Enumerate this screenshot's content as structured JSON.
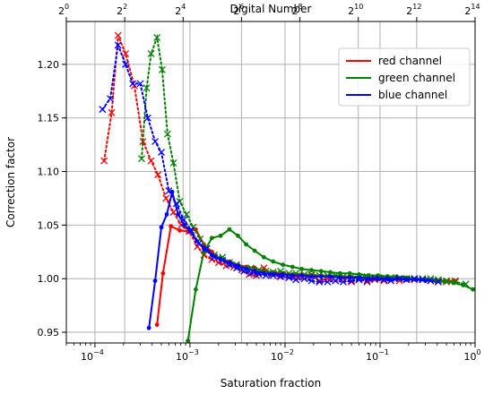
{
  "chart_data": {
    "type": "line",
    "xlabel": "Saturation fraction",
    "ylabel": "Correction factor",
    "top_xlabel": "Digital Number",
    "xscale": "log",
    "xlim": [
      5e-05,
      1.0
    ],
    "ylim": [
      0.94,
      1.24
    ],
    "grid": true,
    "legend_position": "top-right",
    "x_ticks": [
      {
        "value": 0.0001,
        "label": "10",
        "exp": "−4"
      },
      {
        "value": 0.001,
        "label": "10",
        "exp": "−3"
      },
      {
        "value": 0.01,
        "label": "10",
        "exp": "−2"
      },
      {
        "value": 0.1,
        "label": "10",
        "exp": "−1"
      },
      {
        "value": 1.0,
        "label": "10",
        "exp": "0"
      }
    ],
    "top_x_ticks": [
      {
        "value": 1,
        "label": "2",
        "exp": "0"
      },
      {
        "value": 4,
        "label": "2",
        "exp": "2"
      },
      {
        "value": 16,
        "label": "2",
        "exp": "4"
      },
      {
        "value": 64,
        "label": "2",
        "exp": "6"
      },
      {
        "value": 256,
        "label": "2",
        "exp": "8"
      },
      {
        "value": 1024,
        "label": "2",
        "exp": "10"
      },
      {
        "value": 4096,
        "label": "2",
        "exp": "12"
      },
      {
        "value": 16384,
        "label": "2",
        "exp": "14"
      }
    ],
    "top_xlim": [
      1,
      16384
    ],
    "y_ticks": [
      "0.95",
      "1.00",
      "1.05",
      "1.10",
      "1.15",
      "1.20"
    ],
    "series": [
      {
        "name": "red channel",
        "color": "#ff0000",
        "measured": {
          "x": [
            0.00045,
            0.00052,
            0.00063,
            0.00078,
            0.00095,
            0.00115,
            0.0014,
            0.0017,
            0.0021,
            0.0026,
            0.0032,
            0.0039,
            0.0048,
            0.006,
            0.0075,
            0.0095,
            0.012,
            0.015,
            0.019,
            0.024,
            0.03,
            0.038,
            0.048,
            0.06,
            0.075,
            0.095,
            0.12,
            0.15,
            0.19,
            0.24,
            0.3,
            0.38,
            0.48,
            0.6
          ],
          "y": [
            0.957,
            1.005,
            1.049,
            1.045,
            1.044,
            1.046,
            1.032,
            1.025,
            1.018,
            1.016,
            1.013,
            1.011,
            1.01,
            1.007,
            1.006,
            1.005,
            1.004,
            1.004,
            1.003,
            1.003,
            1.002,
            1.002,
            1.002,
            1.001,
            1.001,
            1.001,
            1.0,
            1.0,
            1.0,
            0.999,
            0.999,
            0.998,
            0.998,
            0.998
          ]
        },
        "model": {
          "x": [
            0.000125,
            0.00015,
            0.000175,
            0.00021,
            0.00026,
            0.00032,
            0.00039,
            0.00046,
            0.00056,
            0.00067,
            0.00081,
            0.00098,
            0.0012,
            0.0014,
            0.0017,
            0.002,
            0.0024,
            0.0029,
            0.0035,
            0.0042,
            0.005,
            0.006,
            0.0073,
            0.0088,
            0.011,
            0.013,
            0.016,
            0.019,
            0.023,
            0.028,
            0.034,
            0.041,
            0.05,
            0.06,
            0.073,
            0.088,
            0.11,
            0.13,
            0.16,
            0.19,
            0.23,
            0.28,
            0.34,
            0.41,
            0.5,
            0.62
          ],
          "y": [
            1.11,
            1.155,
            1.227,
            1.21,
            1.18,
            1.128,
            1.11,
            1.097,
            1.075,
            1.062,
            1.05,
            1.044,
            1.03,
            1.022,
            1.018,
            1.015,
            1.012,
            1.011,
            1.008,
            1.004,
            1.003,
            1.01,
            1.004,
            1.002,
            1.001,
            1.002,
            1.0,
            1.003,
            0.998,
            1.0,
            0.998,
            1.0,
            0.997,
            0.999,
            0.997,
            0.999,
            0.998,
            1.0,
            0.998,
            1.0,
            0.999,
            0.999,
            0.998,
            0.998,
            0.997,
            0.998
          ]
        }
      },
      {
        "name": "green channel",
        "color": "#008000",
        "measured": {
          "x": [
            0.00095,
            0.00115,
            0.0014,
            0.0017,
            0.0021,
            0.0026,
            0.0032,
            0.0039,
            0.0048,
            0.006,
            0.0075,
            0.0095,
            0.012,
            0.015,
            0.019,
            0.024,
            0.03,
            0.038,
            0.048,
            0.06,
            0.075,
            0.095,
            0.12,
            0.15,
            0.19,
            0.24,
            0.3,
            0.38,
            0.48,
            0.6,
            0.75,
            0.95
          ],
          "y": [
            0.942,
            0.99,
            1.025,
            1.038,
            1.04,
            1.046,
            1.04,
            1.032,
            1.026,
            1.02,
            1.016,
            1.013,
            1.011,
            1.009,
            1.008,
            1.007,
            1.006,
            1.005,
            1.005,
            1.004,
            1.003,
            1.003,
            1.002,
            1.002,
            1.001,
            1.0,
            0.999,
            0.998,
            0.997,
            0.996,
            0.994,
            0.99
          ]
        },
        "model": {
          "x": [
            0.00031,
            0.00035,
            0.00039,
            0.00045,
            0.00051,
            0.00058,
            0.00067,
            0.00078,
            0.00092,
            0.00108,
            0.00128,
            0.0015,
            0.0018,
            0.0022,
            0.0026,
            0.0031,
            0.0037,
            0.0044,
            0.0053,
            0.0063,
            0.0075,
            0.009,
            0.011,
            0.013,
            0.016,
            0.019,
            0.023,
            0.028,
            0.034,
            0.041,
            0.05,
            0.06,
            0.073,
            0.088,
            0.11,
            0.13,
            0.16,
            0.19,
            0.23,
            0.28,
            0.34,
            0.41,
            0.5,
            0.62,
            0.8
          ],
          "y": [
            1.112,
            1.178,
            1.21,
            1.225,
            1.195,
            1.135,
            1.108,
            1.072,
            1.06,
            1.048,
            1.037,
            1.028,
            1.022,
            1.02,
            1.015,
            1.013,
            1.01,
            1.01,
            1.008,
            1.007,
            1.006,
            1.007,
            1.005,
            1.005,
            1.004,
            1.004,
            1.003,
            1.003,
            1.003,
            1.002,
            1.002,
            1.002,
            1.002,
            1.001,
            1.001,
            1.001,
            1.0,
            1.0,
            1.0,
            1.0,
            1.0,
            0.999,
            0.998,
            0.997,
            0.995
          ]
        }
      },
      {
        "name": "blue channel",
        "color": "#0000ff",
        "measured": {
          "x": [
            0.00037,
            0.00043,
            0.0005,
            0.00057,
            0.00065,
            0.00075,
            0.00087,
            0.001,
            0.00118,
            0.0014,
            0.0017,
            0.0021,
            0.0026,
            0.0032,
            0.0039,
            0.0048,
            0.006,
            0.0075,
            0.0095,
            0.012,
            0.015,
            0.019,
            0.024,
            0.03,
            0.038,
            0.048,
            0.06,
            0.075,
            0.095,
            0.12,
            0.15,
            0.19,
            0.24,
            0.3
          ],
          "y": [
            0.954,
            0.998,
            1.048,
            1.06,
            1.081,
            1.06,
            1.05,
            1.045,
            1.035,
            1.028,
            1.022,
            1.018,
            1.015,
            1.012,
            1.009,
            1.007,
            1.005,
            1.004,
            1.004,
            1.003,
            1.003,
            1.002,
            1.002,
            1.002,
            1.001,
            1.001,
            1.001,
            1.0,
            1.0,
            1.0,
            1.0,
            0.999,
            0.999,
            0.998
          ]
        },
        "model": {
          "x": [
            0.00012,
            0.000145,
            0.000175,
            0.00021,
            0.00025,
            0.0003,
            0.00036,
            0.00043,
            0.0005,
            0.0006,
            0.00072,
            0.00086,
            0.00103,
            0.00124,
            0.0015,
            0.0018,
            0.0022,
            0.0026,
            0.0031,
            0.0037,
            0.0044,
            0.0053,
            0.0063,
            0.0075,
            0.009,
            0.011,
            0.013,
            0.016,
            0.019,
            0.023,
            0.028,
            0.034,
            0.041,
            0.05,
            0.06,
            0.073,
            0.088,
            0.11,
            0.13,
            0.16,
            0.19,
            0.23,
            0.28,
            0.34,
            0.41
          ],
          "y": [
            1.158,
            1.168,
            1.218,
            1.2,
            1.182,
            1.182,
            1.15,
            1.128,
            1.118,
            1.082,
            1.07,
            1.055,
            1.045,
            1.033,
            1.028,
            1.02,
            1.017,
            1.013,
            1.01,
            1.007,
            1.005,
            1.004,
            1.003,
            1.003,
            1.002,
            1.001,
            0.999,
            1.0,
            0.998,
            0.997,
            0.997,
            0.998,
            0.997,
            0.998,
            0.999,
            0.998,
            1.0,
            0.999,
            0.998,
            1.0,
            0.999,
            1.0,
            0.999,
            0.998,
            0.997
          ]
        }
      }
    ]
  }
}
